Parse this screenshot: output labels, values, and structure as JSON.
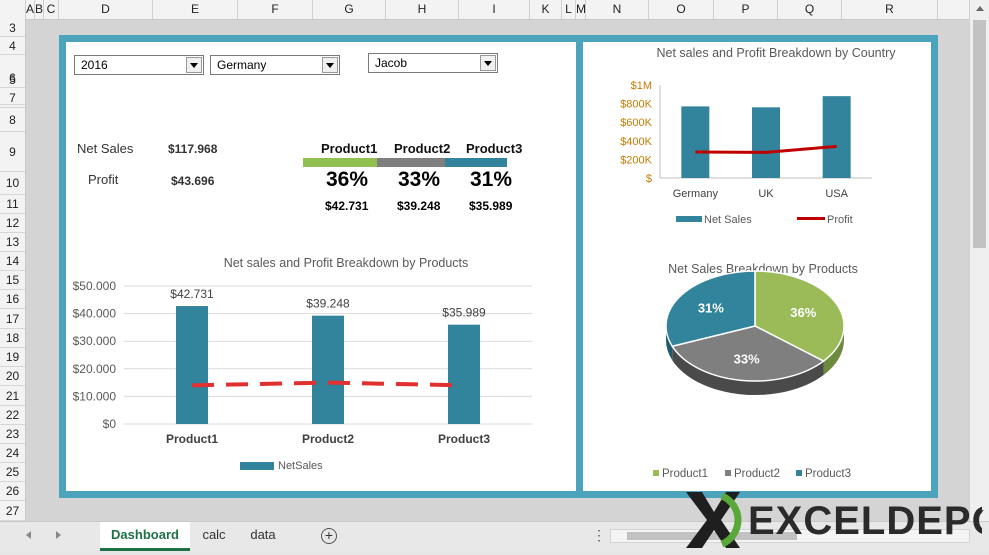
{
  "columns": [
    "A",
    "B",
    "C",
    "D",
    "E",
    "F",
    "G",
    "H",
    "I",
    "K",
    "L",
    "M",
    "N",
    "O",
    "P",
    "Q",
    "R"
  ],
  "rows": [
    "3",
    "4",
    "5",
    "6",
    "7",
    "8",
    "9",
    "10",
    "11",
    "12",
    "13",
    "14",
    "15",
    "16",
    "17",
    "18",
    "19",
    "20",
    "21",
    "22",
    "23",
    "24",
    "25",
    "26",
    "27"
  ],
  "filters": {
    "year": "2016",
    "country": "Germany",
    "person": "Jacob"
  },
  "summary": {
    "net_sales_label": "Net Sales",
    "net_sales_value": "$117.968",
    "profit_label": "Profit",
    "profit_value": "$43.696"
  },
  "products": [
    {
      "name": "Product1",
      "pct": "36%",
      "amount": "$42.731",
      "color": "#92c050"
    },
    {
      "name": "Product2",
      "pct": "33%",
      "amount": "$39.248",
      "color": "#7f7f7f"
    },
    {
      "name": "Product3",
      "pct": "31%",
      "amount": "$35.989",
      "color": "#31849b"
    }
  ],
  "chart_data": [
    {
      "type": "bar",
      "title": "Net sales and Profit Breakdown by Products",
      "categories": [
        "Product1",
        "Product2",
        "Product3"
      ],
      "series": [
        {
          "name": "NetSales",
          "type": "bar",
          "values": [
            42731,
            39248,
            35989
          ],
          "labels": [
            "$42.731",
            "$39.248",
            "$35.989"
          ],
          "color": "#31849b"
        },
        {
          "name": "Profit",
          "type": "line",
          "dashed": true,
          "values": [
            14000,
            15000,
            14000
          ],
          "color": "#e03030"
        }
      ],
      "yticks": [
        "$50.000",
        "$40.000",
        "$30.000",
        "$20.000",
        "$10.000",
        "$0"
      ],
      "ylim": [
        0,
        50000
      ],
      "legend": [
        "NetSales"
      ]
    },
    {
      "type": "bar",
      "title": "Net sales and Profit Breakdown by Country",
      "categories": [
        "Germany",
        "UK",
        "USA"
      ],
      "series": [
        {
          "name": "Net Sales",
          "type": "bar",
          "values": [
            770000,
            760000,
            880000
          ],
          "color": "#31849b"
        },
        {
          "name": "Profit",
          "type": "line",
          "values": [
            280000,
            275000,
            340000
          ],
          "color": "#c00000"
        }
      ],
      "yticks": [
        "$1M",
        "$800K",
        "$600K",
        "$400K",
        "$200K",
        "$"
      ],
      "ylim": [
        0,
        1000000
      ],
      "legend": [
        "Net Sales",
        "Profit"
      ]
    },
    {
      "type": "pie",
      "title": "Net Sales Breakdown by Products",
      "categories": [
        "Product1",
        "Product2",
        "Product3"
      ],
      "values": [
        36,
        33,
        31
      ],
      "labels": [
        "36%",
        "33%",
        "31%"
      ],
      "colors": [
        "#9bbb59",
        "#7f7f7f",
        "#31849b"
      ],
      "legend": [
        "Product1",
        "Product2",
        "Product3"
      ]
    }
  ],
  "sheet_tabs": [
    "Dashboard",
    "calc",
    "data"
  ],
  "active_tab": "Dashboard",
  "watermark": "EXCELDEPO"
}
